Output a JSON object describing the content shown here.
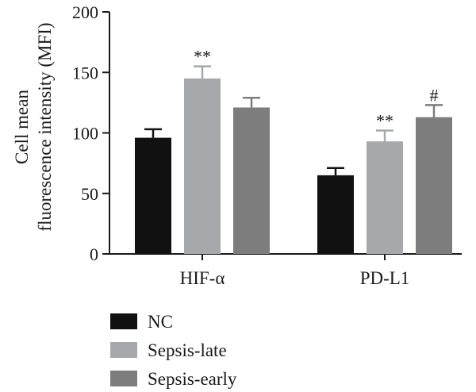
{
  "chart_data": {
    "type": "bar",
    "ylabel_lines": [
      "Cell mean",
      "fluorescence intensity (MFI)"
    ],
    "xlabel": "",
    "ylim": [
      0,
      200
    ],
    "yticks": [
      0,
      50,
      100,
      150,
      200
    ],
    "categories": [
      "HIF-α",
      "PD-L1"
    ],
    "series": [
      {
        "name": "NC",
        "color": "#111111",
        "values": [
          96,
          65
        ],
        "errors": [
          7,
          6
        ],
        "significance": [
          "",
          ""
        ]
      },
      {
        "name": "Sepsis-late",
        "color": "#a6a8ab",
        "values": [
          145,
          93
        ],
        "errors": [
          10,
          9
        ],
        "significance": [
          "**",
          "**"
        ]
      },
      {
        "name": "Sepsis-early",
        "color": "#7d7d7d",
        "values": [
          121,
          113
        ],
        "errors": [
          8,
          10
        ],
        "significance": [
          "",
          "#"
        ]
      }
    ],
    "legend_position": "bottom-left",
    "grid": false
  }
}
